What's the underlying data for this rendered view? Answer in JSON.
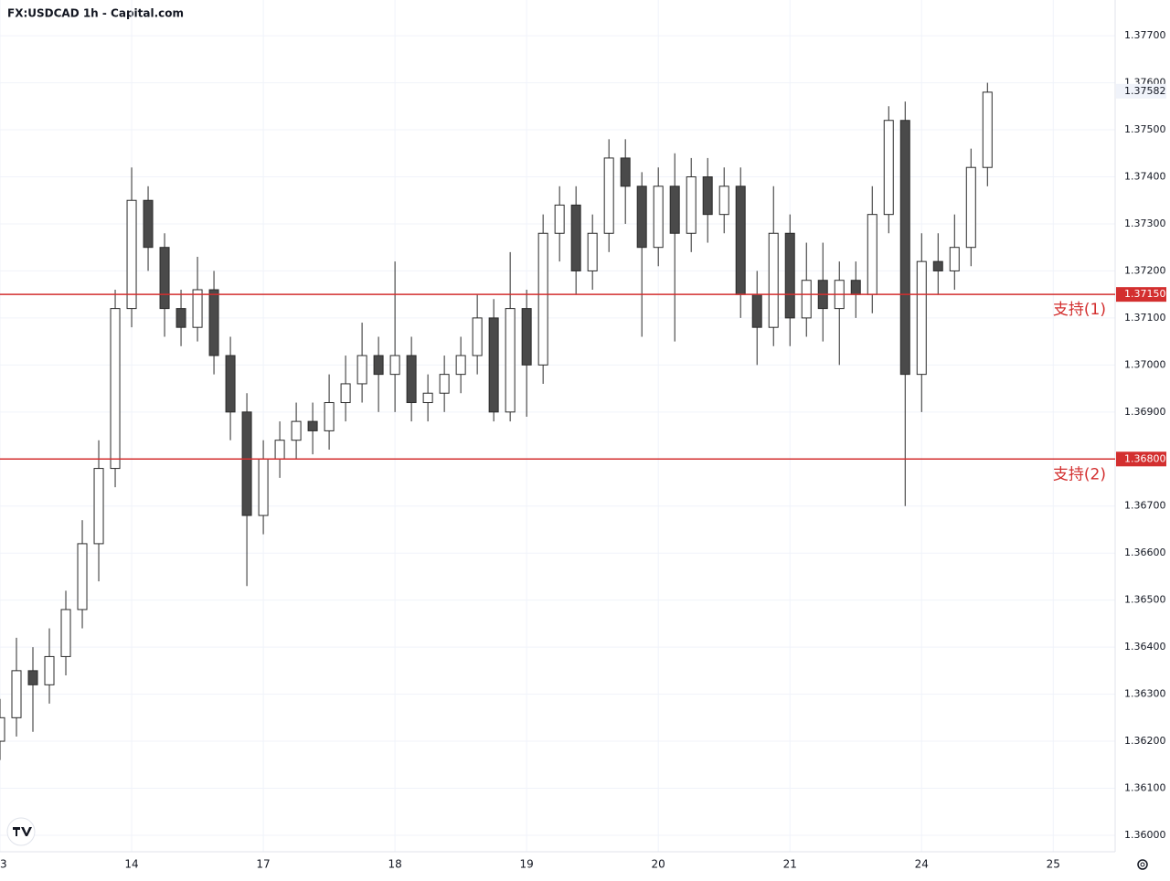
{
  "chart_data": {
    "type": "candlestick",
    "title": "FX:USDCAD 1h - Capital.com",
    "x": [
      0,
      0.125,
      0.25,
      0.375,
      0.5,
      0.625,
      0.75,
      0.875,
      1,
      1.125,
      1.25,
      1.375,
      1.5,
      1.625,
      1.75,
      1.875,
      2,
      2.125,
      2.25,
      2.375,
      2.5,
      2.625,
      2.75,
      2.875,
      3,
      3.125,
      3.25,
      3.375,
      3.5,
      3.625,
      3.75,
      3.875,
      4,
      4.125,
      4.25,
      4.375,
      4.5,
      4.625,
      4.75,
      4.875,
      5,
      5.125,
      5.25,
      5.375,
      5.5,
      5.625,
      5.75,
      5.875,
      6,
      6.125,
      6.25,
      6.375,
      6.5,
      6.625,
      6.75,
      6.875,
      7,
      7.125,
      7.25,
      7.375,
      7.5
    ],
    "open": [
      1.362,
      1.3625,
      1.3635,
      1.3632,
      1.3638,
      1.3648,
      1.3662,
      1.3678,
      1.3712,
      1.3735,
      1.3725,
      1.3712,
      1.3708,
      1.3716,
      1.3702,
      1.369,
      1.3668,
      1.368,
      1.3684,
      1.3688,
      1.3686,
      1.3692,
      1.3696,
      1.3702,
      1.3698,
      1.3702,
      1.3692,
      1.3694,
      1.3698,
      1.3702,
      1.371,
      1.369,
      1.3712,
      1.37,
      1.3728,
      1.3734,
      1.372,
      1.3728,
      1.3744,
      1.3738,
      1.3725,
      1.3738,
      1.3728,
      1.374,
      1.3732,
      1.3738,
      1.3715,
      1.3708,
      1.3728,
      1.371,
      1.3718,
      1.3712,
      1.3718,
      1.3715,
      1.3732,
      1.3752,
      1.3698,
      1.3722,
      1.372,
      1.3725,
      1.3742
    ],
    "high": [
      1.3629,
      1.3642,
      1.364,
      1.3644,
      1.3652,
      1.3667,
      1.3684,
      1.3716,
      1.3742,
      1.3738,
      1.3728,
      1.3716,
      1.3723,
      1.372,
      1.3706,
      1.3694,
      1.3684,
      1.3688,
      1.3692,
      1.3692,
      1.3698,
      1.3702,
      1.3709,
      1.3706,
      1.3722,
      1.3706,
      1.3698,
      1.3702,
      1.3706,
      1.3715,
      1.3714,
      1.3724,
      1.3716,
      1.3732,
      1.3738,
      1.3738,
      1.3732,
      1.3748,
      1.3748,
      1.3741,
      1.3742,
      1.3745,
      1.3744,
      1.3744,
      1.3742,
      1.3742,
      1.372,
      1.3738,
      1.3732,
      1.3726,
      1.3726,
      1.3722,
      1.3722,
      1.3738,
      1.3755,
      1.3756,
      1.3728,
      1.3728,
      1.3732,
      1.3746,
      1.376
    ],
    "low": [
      1.3616,
      1.3621,
      1.3622,
      1.3628,
      1.3634,
      1.3644,
      1.3654,
      1.3674,
      1.3708,
      1.372,
      1.3706,
      1.3704,
      1.3705,
      1.3698,
      1.3684,
      1.3653,
      1.3664,
      1.3676,
      1.368,
      1.3681,
      1.3682,
      1.3688,
      1.3692,
      1.369,
      1.369,
      1.3688,
      1.3688,
      1.369,
      1.3694,
      1.3698,
      1.3688,
      1.3688,
      1.3689,
      1.3696,
      1.3722,
      1.3715,
      1.3716,
      1.3724,
      1.373,
      1.3706,
      1.3721,
      1.3705,
      1.3724,
      1.3726,
      1.3728,
      1.371,
      1.37,
      1.3704,
      1.3704,
      1.3706,
      1.3705,
      1.37,
      1.371,
      1.3711,
      1.3728,
      1.367,
      1.369,
      1.3715,
      1.3716,
      1.3721,
      1.3738
    ],
    "close": [
      1.3625,
      1.3635,
      1.3632,
      1.3638,
      1.3648,
      1.3662,
      1.3678,
      1.3712,
      1.3735,
      1.3725,
      1.3712,
      1.3708,
      1.3716,
      1.3702,
      1.369,
      1.3668,
      1.368,
      1.3684,
      1.3688,
      1.3686,
      1.3692,
      1.3696,
      1.3702,
      1.3698,
      1.3702,
      1.3692,
      1.3694,
      1.3698,
      1.3702,
      1.371,
      1.369,
      1.3712,
      1.37,
      1.3728,
      1.3734,
      1.372,
      1.3728,
      1.3744,
      1.3738,
      1.3725,
      1.3738,
      1.3728,
      1.374,
      1.3732,
      1.3738,
      1.3715,
      1.3708,
      1.3728,
      1.371,
      1.3718,
      1.3712,
      1.3718,
      1.3715,
      1.3732,
      1.3752,
      1.3698,
      1.3722,
      1.372,
      1.3725,
      1.3742,
      1.3758
    ],
    "up_color": "#ffffff",
    "down_color": "#4a4a4a",
    "wick_color": "#2a2a2a",
    "xlim": [
      0,
      8.47
    ],
    "ylim": [
      1.35965,
      1.37776
    ],
    "xticks": [
      {
        "value": 0,
        "label": "13"
      },
      {
        "value": 1,
        "label": "14"
      },
      {
        "value": 2,
        "label": "17"
      },
      {
        "value": 3,
        "label": "18"
      },
      {
        "value": 4,
        "label": "19"
      },
      {
        "value": 5,
        "label": "20"
      },
      {
        "value": 6,
        "label": "21"
      },
      {
        "value": 7,
        "label": "24"
      },
      {
        "value": 8,
        "label": "25"
      }
    ],
    "yticks": [
      {
        "value": 1.36,
        "label": "1.36000"
      },
      {
        "value": 1.361,
        "label": "1.36100"
      },
      {
        "value": 1.362,
        "label": "1.36200"
      },
      {
        "value": 1.363,
        "label": "1.36300"
      },
      {
        "value": 1.364,
        "label": "1.36400"
      },
      {
        "value": 1.365,
        "label": "1.36500"
      },
      {
        "value": 1.366,
        "label": "1.36600"
      },
      {
        "value": 1.367,
        "label": "1.36700"
      },
      {
        "value": 1.368,
        "label": "1.36800"
      },
      {
        "value": 1.369,
        "label": "1.36900"
      },
      {
        "value": 1.37,
        "label": "1.37000"
      },
      {
        "value": 1.371,
        "label": "1.37100"
      },
      {
        "value": 1.372,
        "label": "1.37200"
      },
      {
        "value": 1.373,
        "label": "1.37300"
      },
      {
        "value": 1.374,
        "label": "1.37400"
      },
      {
        "value": 1.375,
        "label": "1.37500"
      },
      {
        "value": 1.376,
        "label": "1.37600"
      },
      {
        "value": 1.377,
        "label": "1.37700"
      }
    ],
    "grid": true,
    "last_price": 1.37582,
    "levels": [
      {
        "value": 1.3715,
        "label": "1.37150",
        "name": "支持(1)"
      },
      {
        "value": 1.368,
        "label": "1.36800",
        "name": "支持(2)"
      }
    ],
    "level_color": "#d32f2f"
  }
}
